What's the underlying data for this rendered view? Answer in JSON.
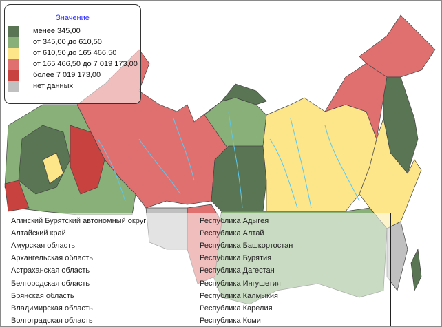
{
  "legend": {
    "title": "Значение",
    "classes": [
      {
        "label": "менее 345,00",
        "color": "#5a7553"
      },
      {
        "label": "от 345,00 до 610,50",
        "color": "#88b078"
      },
      {
        "label": "от 610,50 до 165 466,50",
        "color": "#fde68a"
      },
      {
        "label": "от 165 466,50 до 7 019 173,00",
        "color": "#e07070"
      },
      {
        "label": "более 7 019 173,00",
        "color": "#c8433f"
      },
      {
        "label": "нет данных",
        "color": "#c0c0c0"
      }
    ]
  },
  "region_list": {
    "column1": [
      "Агинский Бурятский автономный округ",
      "Алтайский край",
      "Амурская область",
      "Архангельская область",
      "Астраханская область",
      "Белгородская область",
      "Брянская область",
      "Владимирская область",
      "Волгоградская область"
    ],
    "column2": [
      "Республика Адыгея",
      "Республика Алтай",
      "Республика Башкортостан",
      "Республика Бурятия",
      "Республика Дагестан",
      "Республика Ингушетия",
      "Республика Калмыкия",
      "Республика Карелия",
      "Республика Коми"
    ]
  },
  "colors": {
    "river": "#5bc8f0",
    "border": "#444444"
  }
}
